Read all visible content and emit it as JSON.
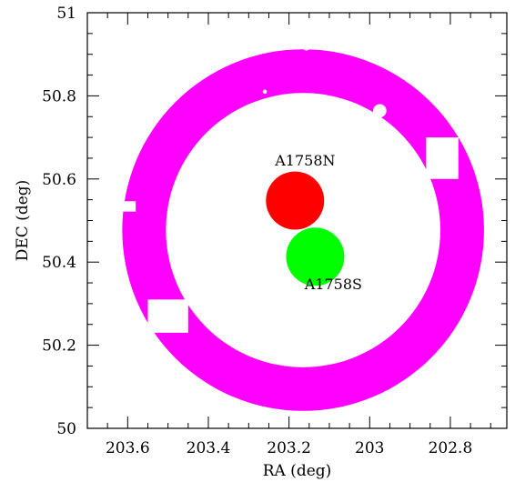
{
  "chart_data": {
    "type": "scatter",
    "title": "",
    "xlabel": "RA (deg)",
    "ylabel": "DEC (deg)",
    "xlim": [
      203.7,
      202.66
    ],
    "ylim": [
      50.0,
      51.0
    ],
    "x_inverted": true,
    "grid": false,
    "xticks": [
      {
        "value": 203.6,
        "label": "203.6"
      },
      {
        "value": 203.4,
        "label": "203.4"
      },
      {
        "value": 203.2,
        "label": "203.2"
      },
      {
        "value": 203.0,
        "label": "203"
      },
      {
        "value": 202.8,
        "label": "202.8"
      }
    ],
    "yticks": [
      {
        "value": 50.0,
        "label": "50"
      },
      {
        "value": 50.2,
        "label": "50.2"
      },
      {
        "value": 50.4,
        "label": "50.4"
      },
      {
        "value": 50.6,
        "label": "50.6"
      },
      {
        "value": 50.8,
        "label": "50.8"
      },
      {
        "value": 51.0,
        "label": "51"
      }
    ],
    "series": [
      {
        "color": "#ff00ff",
        "shape": "annulus",
        "center": {
          "ra": 203.165,
          "dec": 50.477
        },
        "inner_radius_dec": 0.33,
        "outer_radius_dec": 0.435,
        "cutouts": [
          {
            "ra": 203.625,
            "dec": 50.534,
            "width_ra": 0.09,
            "height_dec": 0.025
          },
          {
            "ra": 203.5,
            "dec": 50.27,
            "width_ra": 0.1,
            "height_dec": 0.08
          },
          {
            "ra": 202.82,
            "dec": 50.65,
            "width_ra": 0.08,
            "height_dec": 0.1
          }
        ],
        "holes": [
          {
            "ra": 202.975,
            "dec": 50.764,
            "r_dec": 0.016
          },
          {
            "ra": 203.157,
            "dec": 50.918,
            "r_dec": 0.009
          },
          {
            "ra": 203.26,
            "dec": 50.81,
            "r_dec": 0.005
          }
        ]
      },
      {
        "name": "A1758N",
        "color": "#ff0000",
        "shape": "disk",
        "center": {
          "ra": 203.185,
          "dec": 50.548
        },
        "radius_dec": 0.07
      },
      {
        "name": "A1758S",
        "color": "#00ff00",
        "shape": "disk",
        "center": {
          "ra": 203.135,
          "dec": 50.413
        },
        "radius_dec": 0.07
      }
    ],
    "annotations": [
      {
        "text": "A1758N",
        "ra": 203.16,
        "dec": 50.632
      },
      {
        "text": "A1758S",
        "ra": 203.09,
        "dec": 50.335
      }
    ]
  }
}
